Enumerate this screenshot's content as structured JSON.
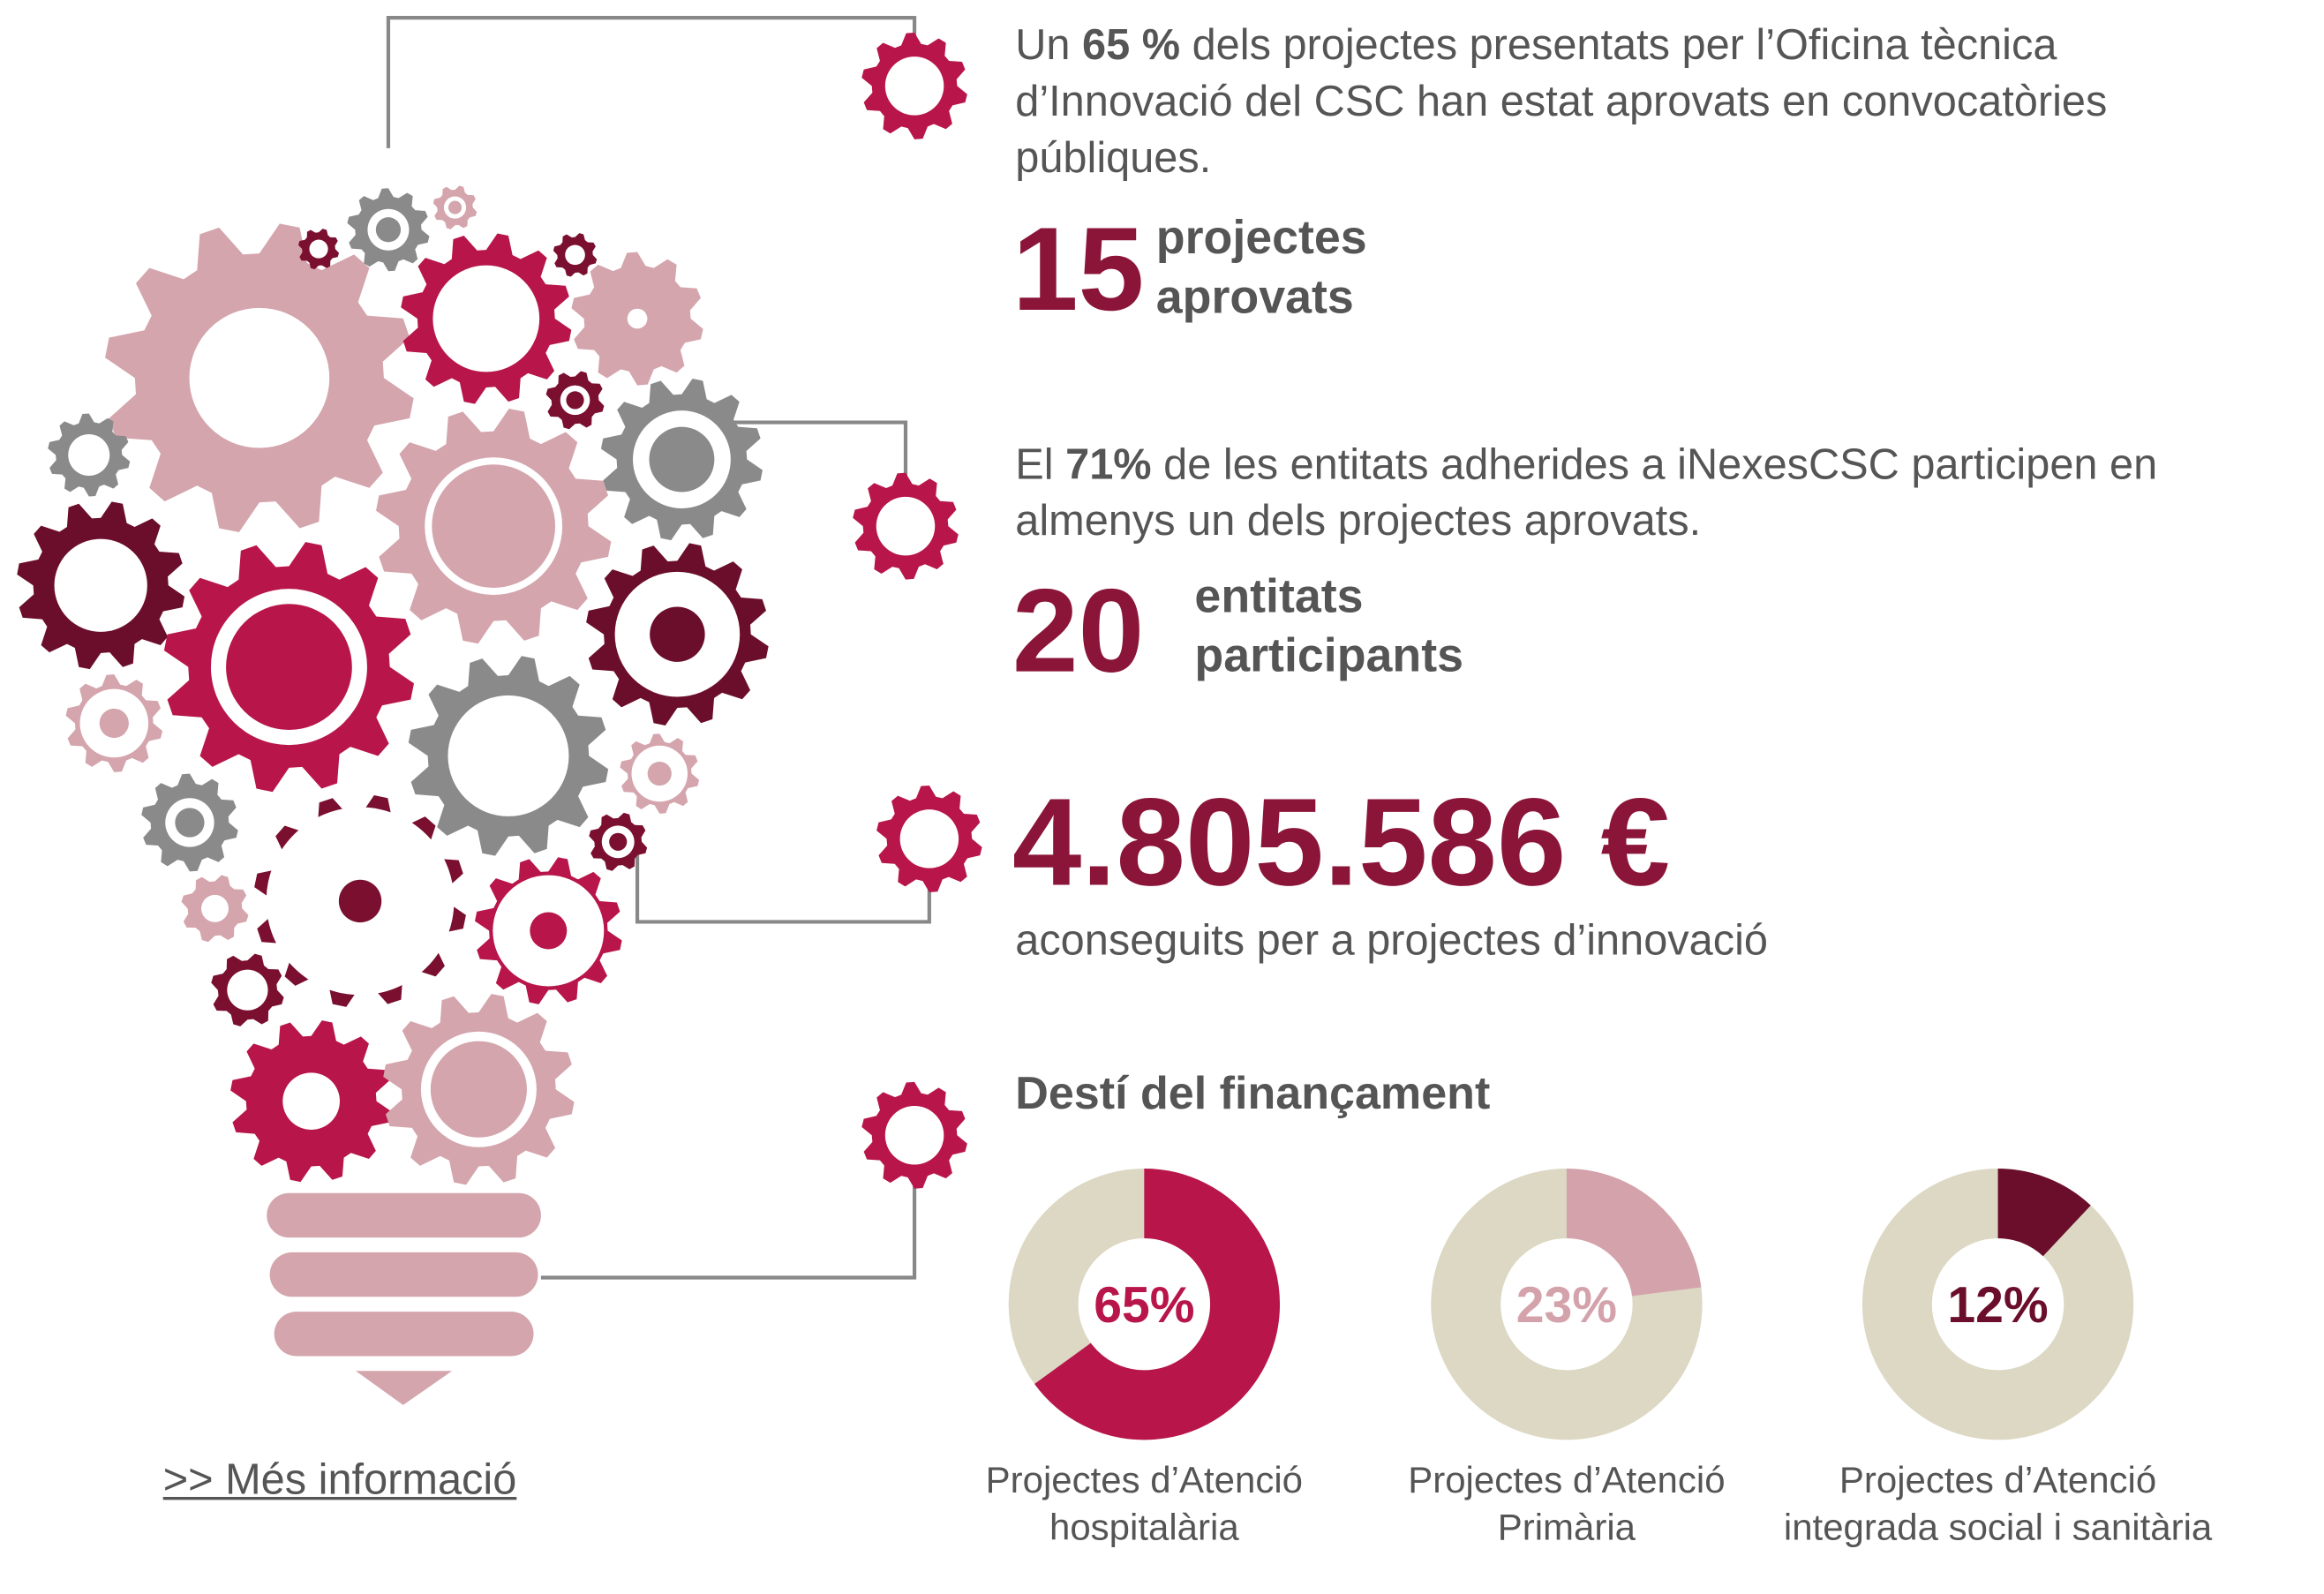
{
  "stats": [
    {
      "before": "Un",
      "highlight": "65 %",
      "after": "dels projectes presentats per l’Oficina tècnica d’Innovació del CSC han estat aprovats en convocatòries públiques.",
      "number": 15,
      "number_label": "projectes aprovats"
    },
    {
      "before": "El",
      "highlight": "71%",
      "after": "de les entitats adherides a iNexesCSC participen en almenys un dels projectes aprovats.",
      "number": 20,
      "number_label": "entitats participants"
    }
  ],
  "funding": {
    "amount": "4.805.586 €",
    "caption": "aconseguits per a projectes d’innovació"
  },
  "section_title": "Destí del finançament",
  "link": ">> Més informació",
  "chart_data": [
    {
      "type": "pie",
      "title": "Projectes d’Atenció hospitalària",
      "values": [
        65
      ],
      "value_labels": [
        "65%"
      ],
      "color": "#b8154a",
      "track_color": "#dcd8c4"
    },
    {
      "type": "pie",
      "title": "Projectes d’Atenció Primària",
      "values": [
        23
      ],
      "value_labels": [
        "23%"
      ],
      "color": "#d4a2ab",
      "track_color": "#dcd8c4"
    },
    {
      "type": "pie",
      "title": "Projectes d’Atenció integrada social i sanitària",
      "values": [
        12
      ],
      "value_labels": [
        "12%"
      ],
      "color": "#6b0e2c",
      "track_color": "#dcd8c4"
    }
  ]
}
